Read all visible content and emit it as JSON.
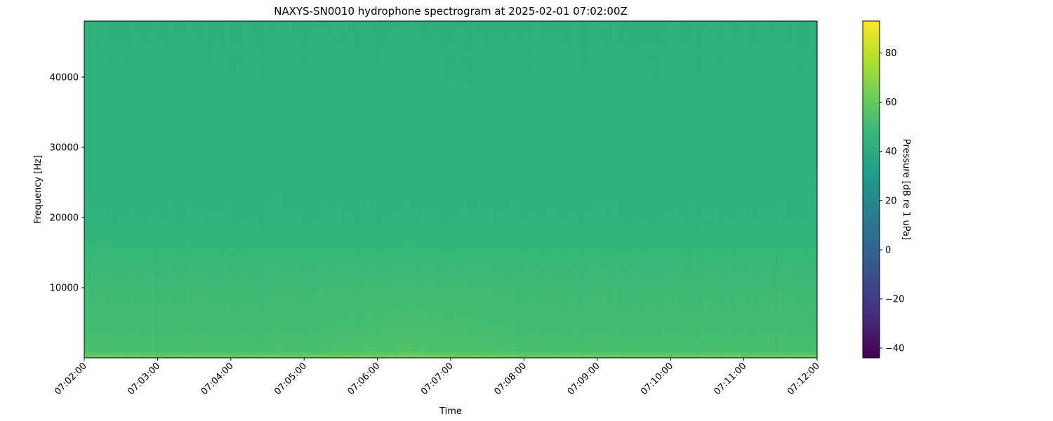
{
  "chart_data": {
    "type": "heatmap",
    "title": "NAXYS-SN0010 hydrophone spectrogram at 2025-02-01 07:02:00Z",
    "xlabel": "Time",
    "ylabel": "Frequency [Hz]",
    "x_ticks": [
      "07:02:00",
      "07:03:00",
      "07:04:00",
      "07:05:00",
      "07:06:00",
      "07:07:00",
      "07:08:00",
      "07:09:00",
      "07:10:00",
      "07:11:00",
      "07:12:00"
    ],
    "xlim": [
      "07:02:00",
      "07:12:00"
    ],
    "y_ticks": [
      10000,
      20000,
      30000,
      40000
    ],
    "ylim": [
      0,
      48000
    ],
    "colormap": "viridis",
    "colorbar": {
      "label": "Pressure [dB re 1 uPa]",
      "ticks": [
        -40,
        -20,
        0,
        20,
        40,
        60,
        80
      ],
      "tick_labels": [
        "−40",
        "−20",
        "0",
        "20",
        "40",
        "60",
        "80"
      ],
      "range": [
        -44,
        93
      ]
    },
    "approximate_levels_db": [
      {
        "frequency_hz": 0,
        "db": 60
      },
      {
        "frequency_hz": 500,
        "db": 58
      },
      {
        "frequency_hz": 1000,
        "db": 52
      },
      {
        "frequency_hz": 5000,
        "db": 50
      },
      {
        "frequency_hz": 10000,
        "db": 49
      },
      {
        "frequency_hz": 15000,
        "db": 47
      },
      {
        "frequency_hz": 20000,
        "db": 45
      },
      {
        "frequency_hz": 30000,
        "db": 44
      },
      {
        "frequency_hz": 48000,
        "db": 43
      }
    ],
    "elevated_noise_period": [
      "07:05:00",
      "07:08:00"
    ]
  }
}
